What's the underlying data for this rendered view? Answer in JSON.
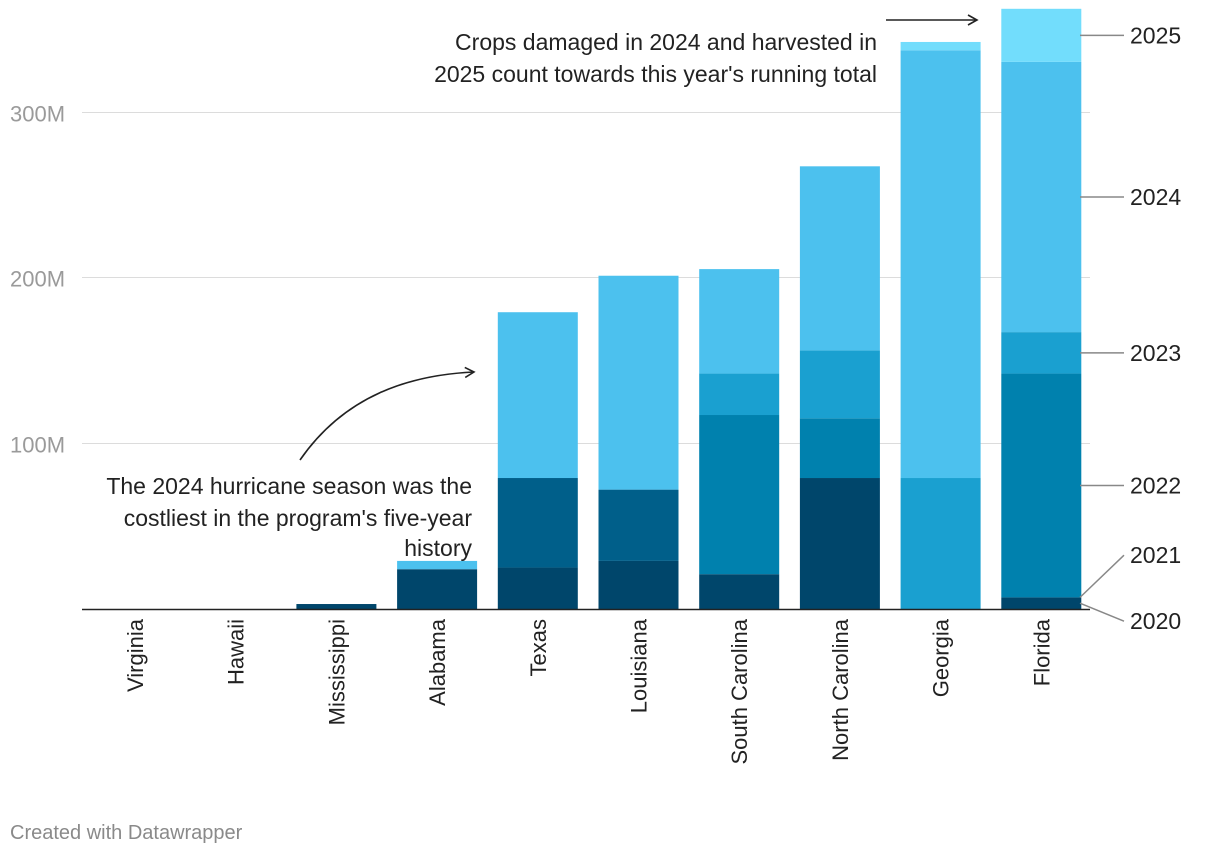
{
  "chart_data": {
    "type": "bar",
    "stacked": true,
    "categories": [
      "Virginia",
      "Hawaii",
      "Mississippi",
      "Alabama",
      "Texas",
      "Louisiana",
      "South Carolina",
      "North Carolina",
      "Georgia",
      "Florida"
    ],
    "series": [
      {
        "name": "2020",
        "color": "#00466b",
        "values": [
          0,
          0,
          3,
          24,
          25,
          29,
          21,
          79,
          0,
          7
        ]
      },
      {
        "name": "2021",
        "color": "#005f8a",
        "values": [
          0,
          0,
          0,
          0,
          54,
          43,
          0,
          0,
          0,
          0
        ]
      },
      {
        "name": "2022",
        "color": "#0081ae",
        "values": [
          0,
          0,
          0,
          0,
          0,
          0,
          96,
          36,
          0,
          135
        ]
      },
      {
        "name": "2023",
        "color": "#1aa0d0",
        "values": [
          0,
          0,
          0,
          0,
          0,
          0,
          25,
          41,
          79,
          25
        ]
      },
      {
        "name": "2024",
        "color": "#4cc1ee",
        "values": [
          0,
          0,
          0,
          5,
          100,
          129,
          63,
          111,
          258,
          163
        ]
      },
      {
        "name": "2025",
        "color": "#72ddfc",
        "values": [
          0,
          0,
          0,
          0,
          0,
          0,
          0,
          0,
          5,
          32
        ]
      }
    ],
    "ylim": [
      0,
      360
    ],
    "yticks": [
      100,
      200,
      300
    ],
    "ytick_labels": [
      "100M",
      "200M",
      "300M"
    ],
    "grid": true,
    "title": "",
    "xlabel": "",
    "ylabel": "",
    "legend_placement": "right, inline labels",
    "annotations": [
      {
        "id": "hurricane",
        "lines": [
          "The 2024 hurricane season was the",
          "costliest in the program's five-year",
          "history"
        ],
        "target": "Texas"
      },
      {
        "id": "running-total",
        "lines": [
          "Crops damaged in 2024 and harvested in",
          "2025 count towards this year's running total"
        ],
        "target": "Florida"
      }
    ]
  },
  "footer": {
    "credit": "Created with Datawrapper"
  }
}
